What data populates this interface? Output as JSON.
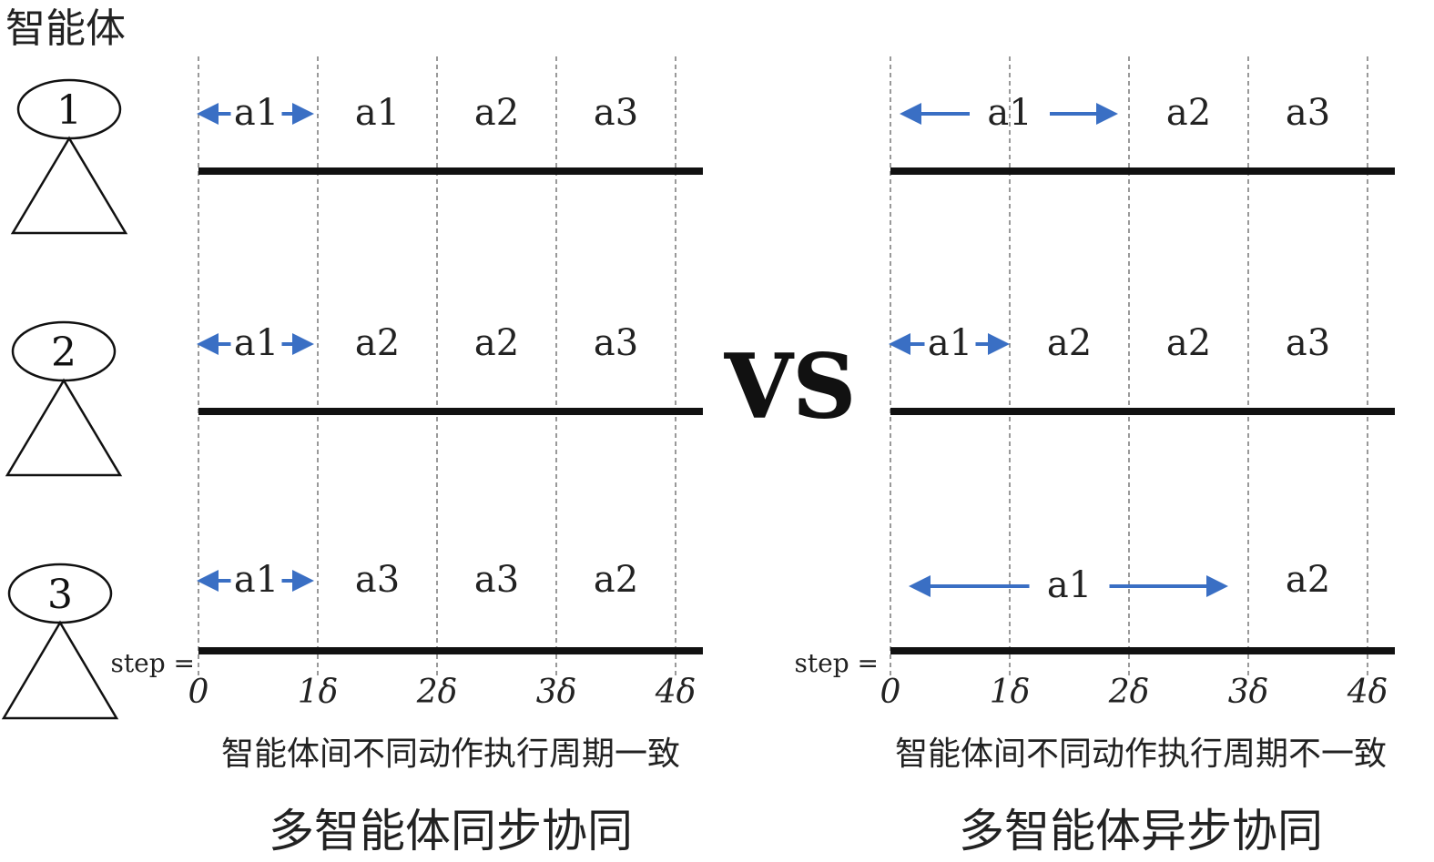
{
  "header_label": "智能体",
  "vs_label": "VS",
  "step_label": "step =",
  "tick_labels": [
    "0",
    "1δ",
    "2δ",
    "3δ",
    "4δ"
  ],
  "colors": {
    "arrow": "#3a6fc4",
    "line": "#111111",
    "text": "#222222"
  },
  "agents": [
    {
      "id": "1",
      "sync_actions": [
        "a1",
        "a1",
        "a2",
        "a3"
      ],
      "async_actions": [
        {
          "label": "a1",
          "span": [
            0,
            2
          ],
          "arrow": true
        },
        {
          "label": "a2",
          "span": [
            2,
            3
          ],
          "arrow": false
        },
        {
          "label": "a3",
          "span": [
            3,
            4
          ],
          "arrow": false
        }
      ]
    },
    {
      "id": "2",
      "sync_actions": [
        "a1",
        "a2",
        "a2",
        "a3"
      ],
      "async_actions": [
        {
          "label": "a1",
          "span": [
            0,
            1
          ],
          "arrow": true
        },
        {
          "label": "a2",
          "span": [
            1,
            2
          ],
          "arrow": false
        },
        {
          "label": "a2",
          "span": [
            2,
            3
          ],
          "arrow": false
        },
        {
          "label": "a3",
          "span": [
            3,
            4
          ],
          "arrow": false
        }
      ]
    },
    {
      "id": "3",
      "sync_actions": [
        "a1",
        "a3",
        "a3",
        "a2"
      ],
      "async_actions": [
        {
          "label": "a1",
          "span": [
            0,
            3
          ],
          "arrow": true
        },
        {
          "label": "a2",
          "span": [
            3,
            4
          ],
          "arrow": false
        }
      ]
    }
  ],
  "panels": {
    "sync": {
      "note": "智能体间不同动作执行周期一致",
      "title": "多智能体同步协同"
    },
    "async": {
      "note": "智能体间不同动作执行周期不一致",
      "title": "多智能体异步协同"
    }
  }
}
